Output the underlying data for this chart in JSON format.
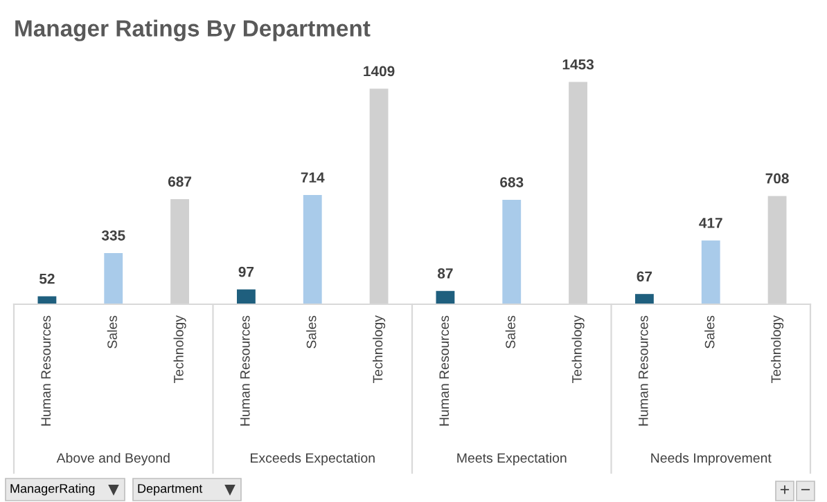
{
  "chart_data": {
    "type": "bar",
    "title": "Manager Ratings By Department",
    "categories": [
      "Above and Beyond",
      "Exceeds Expectation",
      "Meets Expectation",
      "Needs Improvement"
    ],
    "series": [
      {
        "name": "Human Resources",
        "color": "#1f5f7e",
        "values": [
          52,
          97,
          87,
          67
        ]
      },
      {
        "name": "Sales",
        "color": "#a9cbea",
        "values": [
          335,
          714,
          683,
          417
        ]
      },
      {
        "name": "Technology",
        "color": "#d0d0d0",
        "values": [
          687,
          1409,
          1453,
          708
        ]
      }
    ],
    "data_labels": true,
    "annotations": [
      "ManagerRating",
      "Department",
      "+",
      "−"
    ]
  }
}
